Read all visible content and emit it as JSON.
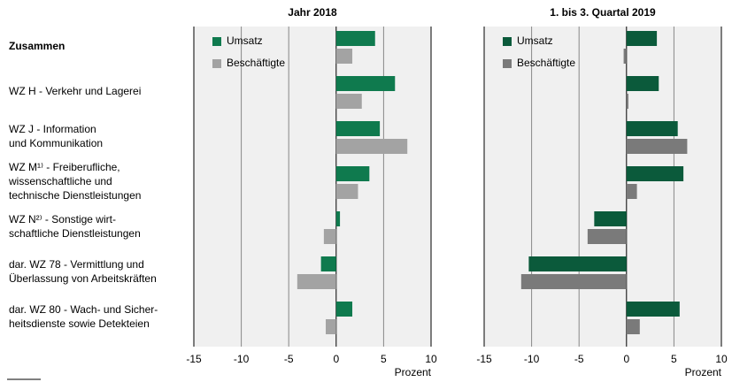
{
  "chart_data": [
    {
      "type": "bar",
      "orientation": "horizontal",
      "title": "Jahr 2018",
      "xlabel": "Prozent",
      "categories": [
        [
          "Zusammen"
        ],
        [
          "WZ H - Verkehr und Lagerei"
        ],
        [
          "WZ J - Information",
          "und Kommunikation"
        ],
        [
          "WZ M¹⁾ - Freiberufliche,",
          "wissenschaftliche und",
          "technische Dienstleistungen"
        ],
        [
          "WZ N²⁾ - Sonstige wirt-",
          "schaftliche Dienstleistungen"
        ],
        [
          "dar. WZ 78 - Vermittlung und",
          "Überlassung von Arbeitskräften"
        ],
        [
          "dar. WZ 80 - Wach- und Sicher-",
          "heitsdienste sowie Detekteien"
        ]
      ],
      "series": [
        {
          "name": "Umsatz",
          "color": "#0f7a4e",
          "values": [
            4.1,
            6.2,
            4.6,
            3.5,
            0.4,
            -1.6,
            1.7
          ]
        },
        {
          "name": "Beschäftigte",
          "color": "#a3a3a3",
          "values": [
            1.7,
            2.7,
            7.5,
            2.3,
            -1.3,
            -4.1,
            -1.1
          ]
        }
      ],
      "xlim": [
        -15,
        10
      ],
      "xticks": [
        -15,
        -10,
        -5,
        0,
        5,
        10
      ],
      "grid": true
    },
    {
      "type": "bar",
      "orientation": "horizontal",
      "title": "1. bis 3. Quartal 2019",
      "xlabel": "Prozent",
      "series": [
        {
          "name": "Umsatz",
          "color": "#0b5a3b",
          "values": [
            3.2,
            3.4,
            5.4,
            6.0,
            -3.4,
            -10.3,
            5.6
          ]
        },
        {
          "name": "Beschäftigte",
          "color": "#7a7a7a",
          "values": [
            -0.3,
            0.2,
            6.4,
            1.1,
            -4.1,
            -11.1,
            1.4
          ]
        }
      ],
      "xlim": [
        -15,
        10
      ],
      "xticks": [
        -15,
        -10,
        -5,
        0,
        5,
        10
      ],
      "grid": true
    }
  ]
}
